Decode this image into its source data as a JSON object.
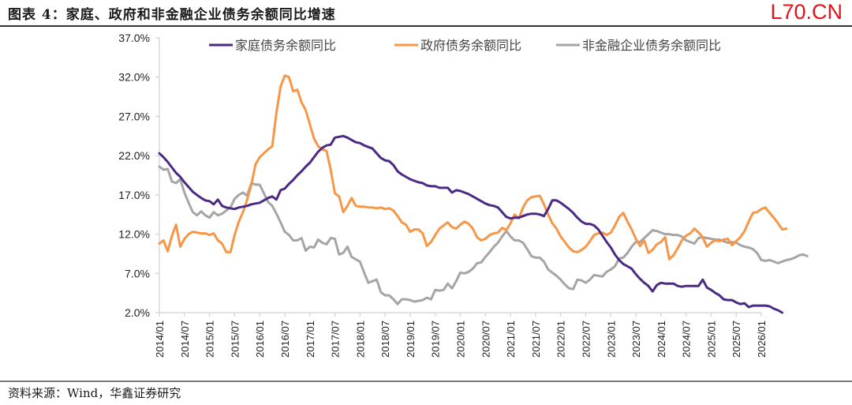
{
  "header": {
    "title": "图表 4：家庭、政府和非金融企业债务余额同比增速",
    "brand": "L70.CN"
  },
  "footer": {
    "source": "资料来源：Wind，华鑫证券研究"
  },
  "chart_data": {
    "type": "line",
    "title": "图表 4：家庭、政府和非金融企业债务余额同比增速",
    "xlabel": "",
    "ylabel": "",
    "ylim": [
      2.0,
      37.0
    ],
    "y_ticks": [
      "2.0%",
      "7.0%",
      "12.0%",
      "17.0%",
      "22.0%",
      "27.0%",
      "32.0%",
      "37.0%"
    ],
    "y_tick_values": [
      2,
      7,
      12,
      17,
      22,
      27,
      32,
      37
    ],
    "x_ticks": [
      "2014/01",
      "2014/07",
      "2015/01",
      "2015/07",
      "2016/01",
      "2016/07",
      "2017/01",
      "2017/07",
      "2018/01",
      "2018/07",
      "2019/01",
      "2019/07",
      "2020/01",
      "2020/07",
      "2021/01",
      "2021/07",
      "2022/01",
      "2022/07",
      "2023/01",
      "2023/07",
      "2024/01",
      "2024/07",
      "2025/01",
      "2025/07",
      "2026/01"
    ],
    "x_start": "2014/01",
    "x_months_total": 144,
    "legend_position": "top",
    "grid": false,
    "series": [
      {
        "name": "家庭债务余额同比",
        "color": "#4b2a86",
        "start_month_index": 0,
        "values": [
          22.3,
          21.8,
          21.2,
          20.5,
          19.8,
          19.3,
          18.6,
          18.0,
          17.4,
          17.0,
          16.6,
          16.3,
          16.2,
          15.8,
          16.4,
          15.6,
          15.4,
          15.3,
          15.2,
          15.4,
          15.5,
          15.6,
          15.8,
          15.9,
          16.0,
          16.3,
          16.6,
          16.8,
          16.4,
          17.6,
          17.8,
          18.4,
          18.9,
          19.5,
          20.0,
          20.6,
          21.1,
          21.8,
          22.5,
          23.0,
          23.3,
          23.4,
          24.3,
          24.4,
          24.5,
          24.3,
          24.0,
          23.7,
          23.6,
          23.3,
          23.1,
          22.9,
          22.3,
          21.7,
          21.4,
          21.3,
          20.8,
          20.0,
          19.6,
          19.3,
          19.0,
          18.8,
          18.6,
          18.5,
          18.2,
          18.1,
          18.1,
          17.9,
          17.9,
          17.9,
          17.3,
          17.6,
          17.5,
          17.3,
          17.1,
          16.8,
          16.5,
          16.2,
          15.9,
          15.7,
          15.6,
          15.4,
          14.8,
          14.2,
          14.0,
          14.1,
          14.1,
          14.3,
          14.5,
          14.6,
          14.6,
          14.5,
          14.3,
          15.2,
          16.3,
          16.3,
          16.0,
          15.6,
          15.2,
          14.7,
          14.1,
          13.6,
          13.3,
          13.3,
          13.1,
          12.6,
          11.8,
          11.0,
          10.3,
          9.4,
          8.7,
          8.2,
          7.9,
          7.6,
          6.9,
          6.3,
          5.8,
          5.4,
          4.7,
          5.5,
          5.8,
          5.7,
          5.7,
          5.7,
          5.4,
          5.3,
          5.4,
          5.4,
          5.4,
          5.4,
          6.2,
          5.2,
          4.9,
          4.5,
          4.2,
          3.7,
          3.6,
          3.6,
          3.3,
          3.1,
          3.2,
          2.7,
          2.9,
          2.9,
          2.9,
          2.9,
          2.8,
          2.5,
          2.3,
          2.0
        ]
      },
      {
        "name": "政府债务余额同比",
        "color": "#f79646",
        "start_month_index": 0,
        "values": [
          10.8,
          11.2,
          9.8,
          11.8,
          13.2,
          10.4,
          11.4,
          12.0,
          12.3,
          12.2,
          12.1,
          12.1,
          11.9,
          12.1,
          11.2,
          10.8,
          9.7,
          9.7,
          11.9,
          13.6,
          14.8,
          16.4,
          18.3,
          20.9,
          21.8,
          22.3,
          22.8,
          23.2,
          27.5,
          30.8,
          32.2,
          32.0,
          30.2,
          30.4,
          28.8,
          27.8,
          26.0,
          24.2,
          23.2,
          22.8,
          22.6,
          20.2,
          17.2,
          16.8,
          14.8,
          15.6,
          16.6,
          15.6,
          15.5,
          15.5,
          15.4,
          15.4,
          15.3,
          15.4,
          15.2,
          15.3,
          15.0,
          14.3,
          13.5,
          13.2,
          12.3,
          12.6,
          12.6,
          12.1,
          10.5,
          11.0,
          11.9,
          12.7,
          13.1,
          13.5,
          12.9,
          12.7,
          13.2,
          13.6,
          13.3,
          12.7,
          11.6,
          11.2,
          11.4,
          11.9,
          12.1,
          12.2,
          12.8,
          12.5,
          13.4,
          14.5,
          14.0,
          15.4,
          16.3,
          16.7,
          16.8,
          16.9,
          15.8,
          14.5,
          13.4,
          12.7,
          11.7,
          11.0,
          10.3,
          9.8,
          9.7,
          10.0,
          10.4,
          11.1,
          11.9,
          12.1,
          12.2,
          11.9,
          12.2,
          13.1,
          14.2,
          14.7,
          13.6,
          12.6,
          11.4,
          10.5,
          11.2,
          9.6,
          10.0,
          10.7,
          11.0,
          11.6,
          8.8,
          9.3,
          10.2,
          11.2,
          11.8,
          12.1,
          12.7,
          12.2,
          11.6,
          10.4,
          10.9,
          11.2,
          11.1,
          11.3,
          11.4,
          10.6,
          11.1,
          11.6,
          12.4,
          13.6,
          14.7,
          14.8,
          15.2,
          15.4,
          14.7,
          14.1,
          13.4,
          12.6,
          12.7
        ]
      },
      {
        "name": "非金融企业债务余额同比",
        "color": "#a5a5a5",
        "start_month_index": 0,
        "values": [
          20.6,
          20.2,
          20.3,
          18.7,
          18.5,
          19.0,
          17.3,
          16.0,
          14.8,
          14.4,
          14.9,
          14.4,
          14.1,
          14.8,
          14.4,
          14.6,
          15.0,
          15.4,
          16.5,
          17.0,
          17.3,
          16.9,
          18.5,
          18.3,
          18.3,
          17.2,
          16.1,
          15.6,
          14.6,
          13.5,
          12.3,
          11.9,
          11.2,
          11.2,
          11.5,
          9.9,
          10.4,
          10.3,
          11.3,
          10.9,
          10.7,
          11.5,
          11.4,
          9.4,
          9.6,
          10.4,
          9.1,
          8.8,
          8.5,
          7.1,
          5.8,
          6.0,
          6.2,
          4.6,
          4.2,
          4.2,
          3.7,
          3.1,
          3.7,
          3.7,
          3.6,
          3.4,
          3.5,
          3.6,
          3.9,
          3.7,
          4.9,
          4.8,
          4.9,
          5.7,
          5.1,
          6.0,
          7.1,
          7.0,
          7.2,
          7.6,
          8.3,
          8.4,
          9.1,
          9.7,
          10.4,
          10.9,
          11.7,
          12.4,
          11.7,
          11.2,
          11.2,
          10.9,
          10.1,
          9.2,
          9.0,
          9.0,
          8.5,
          7.5,
          7.1,
          6.7,
          6.2,
          5.6,
          5.1,
          5.0,
          6.2,
          6.1,
          5.8,
          6.2,
          6.8,
          6.7,
          6.6,
          7.2,
          7.5,
          7.9,
          8.9,
          9.0,
          9.6,
          10.4,
          11.0,
          11.0,
          11.5,
          12.0,
          12.5,
          12.4,
          12.2,
          12.0,
          12.0,
          11.9,
          11.9,
          11.7,
          11.2,
          11.0,
          10.8,
          11.5,
          11.6,
          11.5,
          11.4,
          11.3,
          11.3,
          11.1,
          10.9,
          11.0,
          10.9,
          10.6,
          10.4,
          10.3,
          10.1,
          9.6,
          8.7,
          8.6,
          8.7,
          8.5,
          8.3,
          8.5,
          8.7,
          8.8,
          9.0,
          9.3,
          9.4,
          9.2
        ]
      }
    ]
  }
}
